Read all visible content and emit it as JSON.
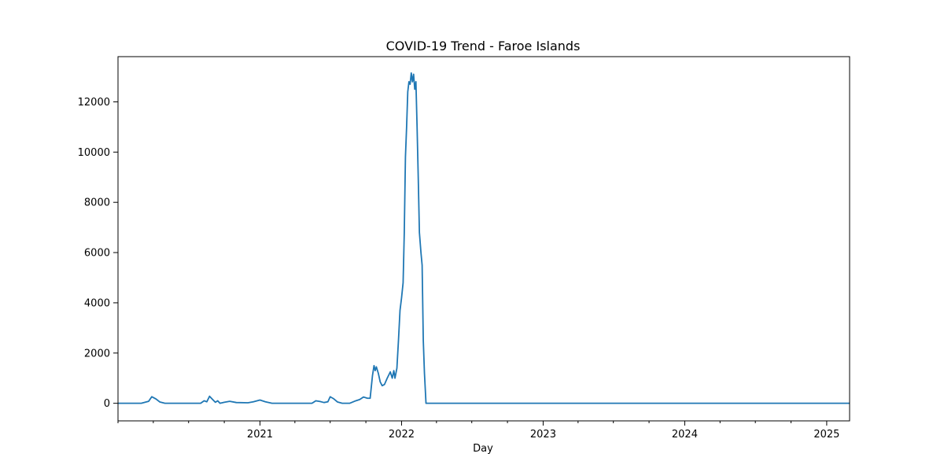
{
  "chart_data": {
    "type": "line",
    "title": "COVID-19 Trend - Faroe Islands",
    "xlabel": "Day",
    "ylabel": "",
    "grid": false,
    "legend": "none",
    "xlim": [
      "2020-01-01",
      "2025-03-01"
    ],
    "ylim": [
      -700,
      13800
    ],
    "x_ticks": [
      {
        "date": "2021-01-01",
        "label": "2021"
      },
      {
        "date": "2022-01-01",
        "label": "2022"
      },
      {
        "date": "2023-01-01",
        "label": "2023"
      },
      {
        "date": "2024-01-01",
        "label": "2024"
      },
      {
        "date": "2025-01-01",
        "label": "2025"
      }
    ],
    "x_minor_ticks": [
      "2020-01-01",
      "2020-04-01",
      "2020-07-01",
      "2020-10-01",
      "2021-04-01",
      "2021-07-01",
      "2021-10-01",
      "2022-04-01",
      "2022-07-01",
      "2022-10-01",
      "2023-04-01",
      "2023-07-01",
      "2023-10-01",
      "2024-04-01",
      "2024-07-01",
      "2024-10-01"
    ],
    "y_ticks": [
      0,
      2000,
      4000,
      6000,
      8000,
      10000,
      12000
    ],
    "series": [
      {
        "color": "#1f77b4",
        "points": [
          [
            "2020-01-01",
            0
          ],
          [
            "2020-03-01",
            0
          ],
          [
            "2020-03-20",
            80
          ],
          [
            "2020-03-28",
            260
          ],
          [
            "2020-04-08",
            170
          ],
          [
            "2020-04-18",
            50
          ],
          [
            "2020-05-01",
            0
          ],
          [
            "2020-08-01",
            0
          ],
          [
            "2020-08-10",
            100
          ],
          [
            "2020-08-17",
            60
          ],
          [
            "2020-08-24",
            280
          ],
          [
            "2020-09-01",
            150
          ],
          [
            "2020-09-08",
            40
          ],
          [
            "2020-09-14",
            100
          ],
          [
            "2020-09-20",
            0
          ],
          [
            "2020-10-01",
            40
          ],
          [
            "2020-10-15",
            80
          ],
          [
            "2020-11-01",
            30
          ],
          [
            "2020-12-01",
            20
          ],
          [
            "2020-12-15",
            60
          ],
          [
            "2021-01-01",
            130
          ],
          [
            "2021-01-15",
            60
          ],
          [
            "2021-02-01",
            0
          ],
          [
            "2021-05-15",
            0
          ],
          [
            "2021-05-25",
            100
          ],
          [
            "2021-06-05",
            70
          ],
          [
            "2021-06-15",
            30
          ],
          [
            "2021-06-25",
            60
          ],
          [
            "2021-07-01",
            260
          ],
          [
            "2021-07-10",
            180
          ],
          [
            "2021-07-20",
            50
          ],
          [
            "2021-08-01",
            0
          ],
          [
            "2021-08-20",
            0
          ],
          [
            "2021-09-05",
            100
          ],
          [
            "2021-09-15",
            150
          ],
          [
            "2021-09-25",
            250
          ],
          [
            "2021-10-05",
            200
          ],
          [
            "2021-10-12",
            200
          ],
          [
            "2021-10-18",
            1100
          ],
          [
            "2021-10-22",
            1500
          ],
          [
            "2021-10-25",
            1300
          ],
          [
            "2021-10-28",
            1450
          ],
          [
            "2021-11-02",
            1200
          ],
          [
            "2021-11-07",
            850
          ],
          [
            "2021-11-12",
            700
          ],
          [
            "2021-11-18",
            750
          ],
          [
            "2021-11-25",
            1000
          ],
          [
            "2021-12-03",
            1250
          ],
          [
            "2021-12-08",
            1000
          ],
          [
            "2021-12-12",
            1300
          ],
          [
            "2021-12-15",
            1000
          ],
          [
            "2021-12-20",
            1400
          ],
          [
            "2021-12-24",
            2500
          ],
          [
            "2021-12-28",
            3700
          ],
          [
            "2022-01-01",
            4200
          ],
          [
            "2022-01-05",
            4800
          ],
          [
            "2022-01-08",
            6800
          ],
          [
            "2022-01-11",
            9800
          ],
          [
            "2022-01-14",
            11000
          ],
          [
            "2022-01-17",
            12400
          ],
          [
            "2022-01-20",
            12800
          ],
          [
            "2022-01-23",
            12700
          ],
          [
            "2022-01-26",
            13150
          ],
          [
            "2022-01-29",
            12800
          ],
          [
            "2022-02-01",
            13100
          ],
          [
            "2022-02-04",
            12500
          ],
          [
            "2022-02-07",
            12800
          ],
          [
            "2022-02-10",
            11000
          ],
          [
            "2022-02-13",
            9000
          ],
          [
            "2022-02-16",
            6800
          ],
          [
            "2022-02-20",
            6000
          ],
          [
            "2022-02-23",
            5500
          ],
          [
            "2022-02-26",
            2500
          ],
          [
            "2022-03-01",
            1200
          ],
          [
            "2022-03-05",
            0
          ],
          [
            "2025-03-01",
            0
          ]
        ]
      }
    ]
  }
}
